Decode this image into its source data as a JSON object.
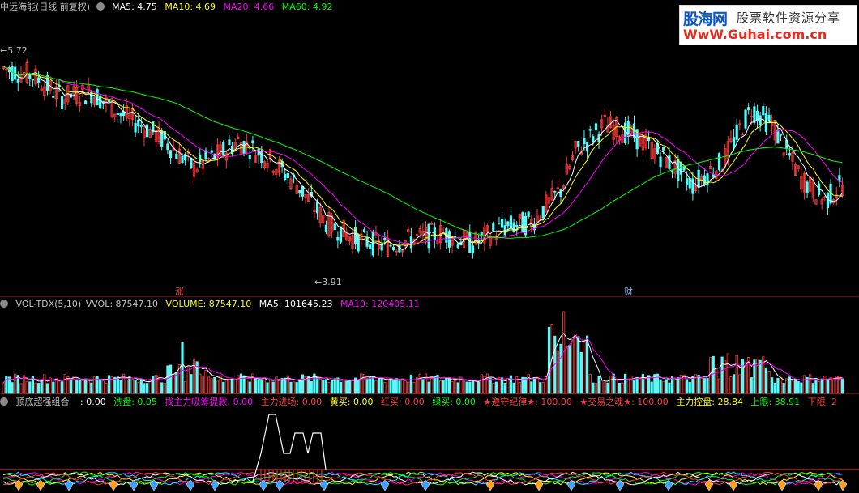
{
  "main_header": {
    "title": "中远海能(日线 前复权)",
    "ma5": "MA5: 4.75",
    "ma10": "MA10: 4.69",
    "ma20": "MA20: 4.66",
    "ma60": "MA60: 4.92"
  },
  "price_labels": {
    "high": "5.72",
    "low": "3.91",
    "marker_zhang": "涨",
    "marker_cai": "财"
  },
  "volume_header": {
    "name": "VOL-TDX(5,10)",
    "vvol": "VVOL: 87547.10",
    "volume": "VOLUME: 87547.10",
    "ma5": "MA5: 101645.23",
    "ma10": "MA10: 120405.11"
  },
  "indicator_header": {
    "name": "顶底超强组合",
    "v0": ": 0.00",
    "xipan": "洗盘: 0.05",
    "zhaozhuli": "找主力吸筹提款: 0.00",
    "zhulijinchang": "主力进场: 0.00",
    "huangmai": "黄买: 0.00",
    "hongmai": "红买: 0.00",
    "lvmai": "绿买: 0.00",
    "zunshou": "★遵守纪律★: 100.00",
    "jiaoyi": "★交易之魂★: 100.00",
    "zhulikongpan": "主力控盘: 28.84",
    "shangxian": "上限: 38.91",
    "xiaxian": "下限: 2"
  },
  "logo": {
    "line1": "股海网",
    "line1b": "股票软件资源分享",
    "line2": "WwW.Guhai.com.cn"
  },
  "colors": {
    "up": "#ff3c3c",
    "down": "#54fcfc",
    "ma5": "#ffffff",
    "ma10": "#ffff00",
    "ma20": "#ff00ff",
    "ma60": "#00ff00",
    "separator": "#7a0000"
  },
  "icons": [
    "gear-icon",
    "diamond-icon",
    "arrow-left-icon"
  ]
}
